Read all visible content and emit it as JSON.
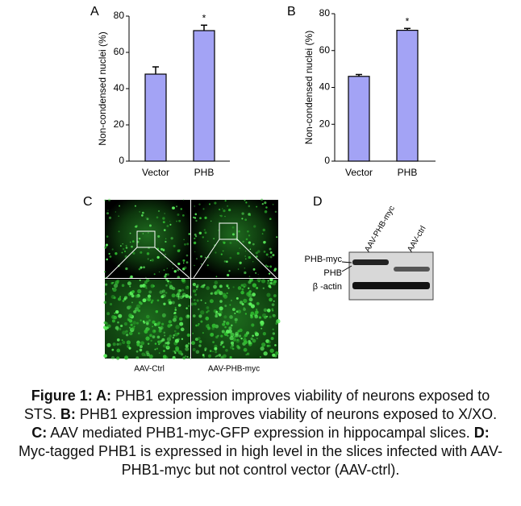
{
  "chart_data": [
    {
      "type": "bar",
      "panel": "A",
      "y_label": "Non-condensed nuclei (%)",
      "categories": [
        "Vector",
        "PHB"
      ],
      "values": [
        48,
        72
      ],
      "errors": [
        4,
        3
      ],
      "color": "#a3a3f5",
      "ylim": [
        0,
        80
      ],
      "yticks": [
        0,
        20,
        40,
        60,
        80
      ],
      "annotations": [
        {
          "x": "PHB",
          "text": "*"
        }
      ]
    },
    {
      "type": "bar",
      "panel": "B",
      "y_label": "Non-condensed nuclei (%)",
      "categories": [
        "Vector",
        "PHB"
      ],
      "values": [
        46,
        71
      ],
      "errors": [
        1,
        1
      ],
      "color": "#a3a3f5",
      "ylim": [
        0,
        80
      ],
      "yticks": [
        0,
        20,
        40,
        60,
        80
      ],
      "annotations": [
        {
          "x": "PHB",
          "text": "*"
        }
      ]
    }
  ],
  "panel_c": {
    "label": "C",
    "captions": [
      "AAV-Ctrl",
      "AAV-PHB-myc"
    ]
  },
  "panel_d": {
    "label": "D",
    "lanes": [
      "AAV-PHB-myc",
      "AAV-ctrl"
    ],
    "bands": [
      "PHB-myc",
      "PHB",
      "β -actin"
    ]
  },
  "caption": [
    {
      "text": "Figure 1: A:",
      "bold": true
    },
    {
      "text": " PHB1 expression improves viability of neurons exposed to STS. "
    },
    {
      "text": "B:",
      "bold": true
    },
    {
      "text": " PHB1 expression improves viability of neurons exposed to X/XO. "
    },
    {
      "text": "C:",
      "bold": true
    },
    {
      "text": " AAV mediated PHB1-myc-GFP expression in hippocampal slices. "
    },
    {
      "text": "D:",
      "bold": true
    },
    {
      "text": " Myc-tagged PHB1 is expressed in high level in the slices infected with AAV-PHB1-myc but not control vector (AAV-ctrl)."
    }
  ]
}
